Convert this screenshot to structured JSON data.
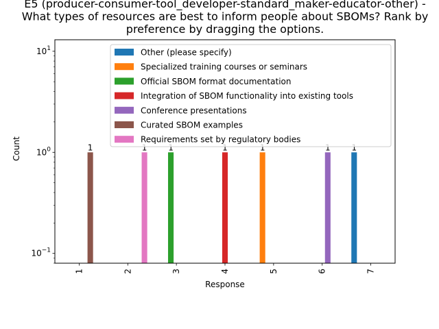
{
  "chart_data": {
    "type": "bar",
    "title_lines": [
      "E5 (producer-consumer-tool_developer-standard_maker-educator-other) -",
      "What types of resources are best to inform people about SBOMs? Rank by",
      "preference by dragging the options."
    ],
    "xlabel": "Response",
    "ylabel": "Count",
    "yscale": "log",
    "ylim": [
      0.08,
      13
    ],
    "y_ticks": [
      {
        "value": 0.1,
        "base": "10",
        "exp": "−1"
      },
      {
        "value": 1,
        "base": "10",
        "exp": "0"
      },
      {
        "value": 10,
        "base": "10",
        "exp": "1"
      }
    ],
    "categories": [
      "1",
      "2",
      "3",
      "4",
      "5",
      "6",
      "7"
    ],
    "legend_position": "upper-center",
    "series": [
      {
        "name": "Other (please specify)",
        "color": "#1f77b4",
        "values": [
          0,
          0,
          0,
          0,
          0,
          0,
          1
        ]
      },
      {
        "name": "Specialized training courses or seminars",
        "color": "#ff7f0e",
        "values": [
          0,
          0,
          0,
          0,
          1,
          0,
          0
        ]
      },
      {
        "name": "Official SBOM format documentation",
        "color": "#2ca02c",
        "values": [
          0,
          0,
          1,
          0,
          0,
          0,
          0
        ]
      },
      {
        "name": "Integration of SBOM functionality into existing tools",
        "color": "#d62728",
        "values": [
          0,
          0,
          0,
          1,
          0,
          0,
          0
        ]
      },
      {
        "name": "Conference presentations",
        "color": "#9467bd",
        "values": [
          0,
          0,
          0,
          0,
          0,
          1,
          0
        ]
      },
      {
        "name": "Curated SBOM examples",
        "color": "#8c564b",
        "values": [
          1,
          0,
          0,
          0,
          0,
          0,
          0
        ]
      },
      {
        "name": "Requirements set by regulatory bodies",
        "color": "#e377c2",
        "values": [
          0,
          1,
          0,
          0,
          0,
          0,
          0
        ]
      }
    ]
  }
}
